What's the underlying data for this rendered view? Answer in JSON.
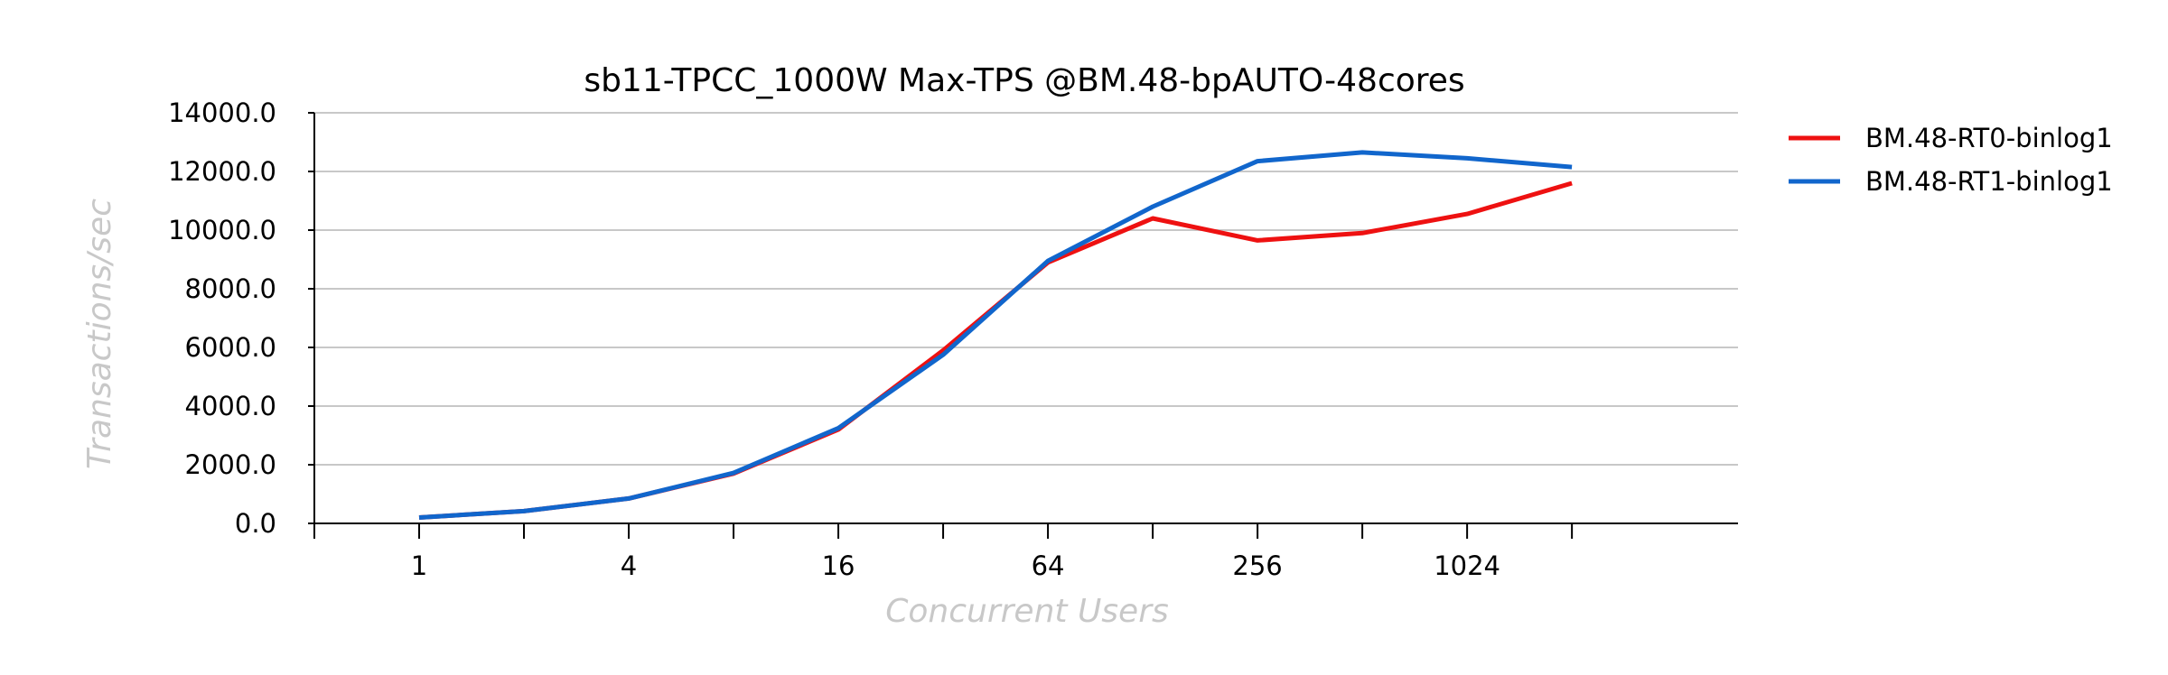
{
  "chart_data": {
    "type": "line",
    "title": "sb11-TPCC_1000W Max-TPS @BM.48-bpAUTO-48cores",
    "xlabel": "Concurrent Users",
    "ylabel": "Transactions/sec",
    "x_scale": "log2",
    "x": [
      1,
      2,
      4,
      8,
      16,
      32,
      64,
      128,
      256,
      512,
      1024,
      2048
    ],
    "x_ticks_labeled": [
      "1",
      "4",
      "16",
      "64",
      "256",
      "1024"
    ],
    "xlim": [
      0.5,
      6144
    ],
    "ylim": [
      0,
      14000
    ],
    "y_ticks": [
      "0.0",
      "2000.0",
      "4000.0",
      "6000.0",
      "8000.0",
      "10000.0",
      "12000.0",
      "14000.0"
    ],
    "grid": "horizontal",
    "legend_position": "top-right",
    "series": [
      {
        "name": "BM.48-RT0-binlog1",
        "color": "#ee1111",
        "values": [
          200,
          420,
          850,
          1700,
          3200,
          5900,
          8900,
          10400,
          9650,
          9900,
          10550,
          11600
        ]
      },
      {
        "name": "BM.48-RT1-binlog1",
        "color": "#1166cc",
        "values": [
          200,
          420,
          850,
          1720,
          3250,
          5750,
          8950,
          10800,
          12350,
          12650,
          12450,
          12150
        ]
      }
    ]
  }
}
